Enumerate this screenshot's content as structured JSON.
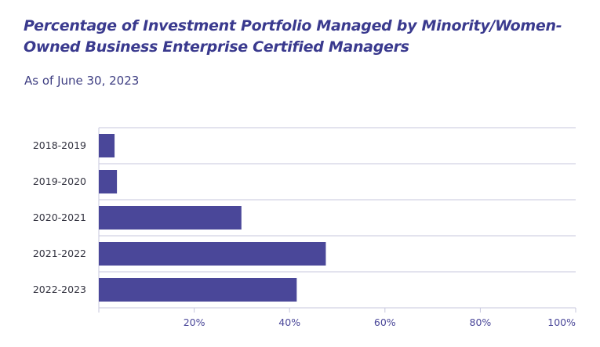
{
  "colors": {
    "title": "#3a3a8e",
    "subtitle": "#3e3e82",
    "bar": "#4a4799",
    "grid": "#c7c7de",
    "label": "#333340",
    "tick": "#4a4799"
  },
  "header": {
    "title": "Percentage of Investment Portfolio Managed by Minority/Women-Owned Business Enterprise Certified Managers",
    "subtitle": "As of June 30, 2023"
  },
  "chart_data": {
    "type": "bar",
    "orientation": "horizontal",
    "categories": [
      "2018-2019",
      "2019-2020",
      "2020-2021",
      "2021-2022",
      "2022-2023"
    ],
    "values": [
      3.3,
      3.8,
      29.9,
      47.6,
      41.5
    ],
    "xlim": [
      0,
      100
    ],
    "x_ticks": [
      20,
      40,
      60,
      80,
      100
    ],
    "x_tick_labels": [
      "20%",
      "40%",
      "60%",
      "80%",
      "100%"
    ],
    "grid": true
  }
}
